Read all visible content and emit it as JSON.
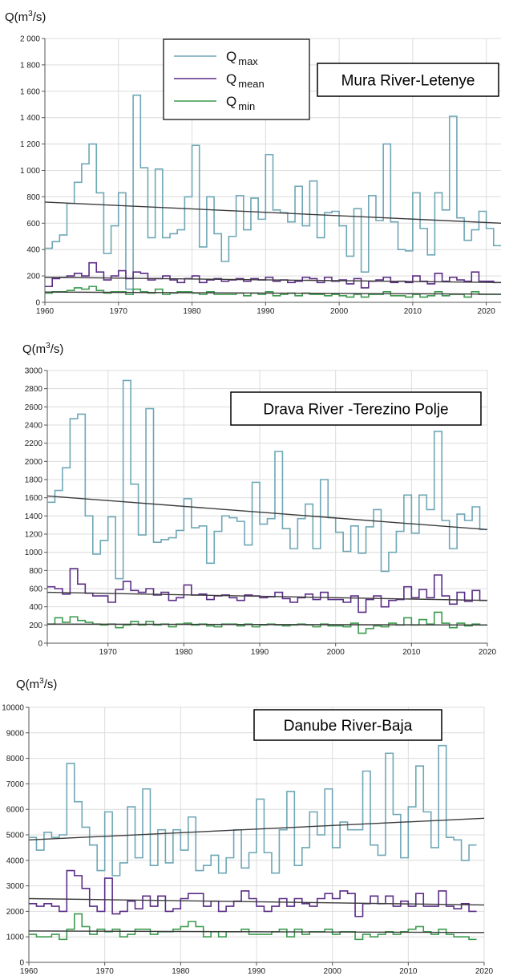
{
  "legend": {
    "items": [
      {
        "symbol": "Q",
        "sub": "max",
        "color": "#6fa7b6"
      },
      {
        "symbol": "Q",
        "sub": "mean",
        "color": "#5b2d86"
      },
      {
        "symbol": "Q",
        "sub": "min",
        "color": "#3c9a4e"
      }
    ]
  },
  "chart_data": [
    {
      "type": "line",
      "title": "Mura River-Letenye",
      "ylabel": "Q(m3/s)",
      "ylabel_parts": {
        "pre": "Q(m",
        "sup": "3",
        "post": "/s)"
      },
      "xlim": [
        1960,
        2022
      ],
      "ylim": [
        0,
        2000
      ],
      "xticks": [
        1960,
        1970,
        1980,
        1990,
        2000,
        2010,
        2020
      ],
      "yticks": [
        0,
        200,
        400,
        600,
        800,
        1000,
        1200,
        1400,
        1600,
        1800,
        2000
      ],
      "ytick_labels": [
        "0",
        "200",
        "400",
        "600",
        "800",
        "1 000",
        "1 200",
        "1 400",
        "1 600",
        "1 800",
        "2 000"
      ],
      "grid": true,
      "x_start": 1960,
      "series": [
        {
          "color": "#6fa7b6",
          "values": [
            410,
            460,
            510,
            750,
            910,
            1050,
            1200,
            830,
            370,
            580,
            830,
            100,
            1570,
            1020,
            490,
            1010,
            490,
            520,
            550,
            800,
            1190,
            420,
            800,
            520,
            310,
            500,
            810,
            550,
            790,
            630,
            1120,
            700,
            680,
            610,
            880,
            580,
            920,
            490,
            680,
            690,
            580,
            350,
            710,
            230,
            810,
            620,
            1200,
            610,
            400,
            390,
            830,
            560,
            360,
            830,
            700,
            1410,
            640,
            470,
            550,
            690,
            560,
            430,
            430
          ]
        },
        {
          "color": "#5b2d86",
          "values": [
            120,
            180,
            190,
            200,
            220,
            200,
            300,
            230,
            170,
            200,
            240,
            180,
            230,
            220,
            170,
            180,
            200,
            170,
            150,
            180,
            200,
            150,
            170,
            180,
            160,
            170,
            180,
            160,
            180,
            170,
            190,
            160,
            170,
            150,
            160,
            190,
            180,
            150,
            190,
            160,
            170,
            140,
            180,
            110,
            160,
            170,
            190,
            150,
            160,
            150,
            200,
            160,
            140,
            220,
            160,
            190,
            170,
            160,
            230,
            160,
            160,
            150,
            150
          ]
        },
        {
          "color": "#3c9a4e",
          "values": [
            70,
            80,
            80,
            90,
            110,
            100,
            120,
            90,
            70,
            80,
            80,
            60,
            100,
            80,
            70,
            100,
            60,
            70,
            80,
            80,
            70,
            60,
            80,
            60,
            60,
            60,
            70,
            50,
            70,
            60,
            80,
            50,
            60,
            70,
            50,
            70,
            60,
            60,
            50,
            60,
            50,
            40,
            60,
            40,
            60,
            60,
            80,
            50,
            50,
            40,
            60,
            40,
            50,
            80,
            50,
            60,
            60,
            40,
            80,
            60,
            60,
            60,
            60
          ]
        }
      ],
      "trends": [
        {
          "color": "#3c3c3c",
          "x": [
            1960,
            2022
          ],
          "y": [
            760,
            600
          ]
        },
        {
          "color": "#3c3c3c",
          "x": [
            1960,
            2022
          ],
          "y": [
            190,
            150
          ]
        },
        {
          "color": "#3c3c3c",
          "x": [
            1960,
            2022
          ],
          "y": [
            78,
            62
          ]
        }
      ]
    },
    {
      "type": "line",
      "title": "Drava River -Terezino Polje",
      "ylabel": "Q(m3/s)",
      "ylabel_parts": {
        "pre": "Q(m",
        "sup": "3",
        "post": "/s)"
      },
      "xlim": [
        1962,
        2020
      ],
      "ylim": [
        0,
        3000
      ],
      "xticks": [
        1970,
        1980,
        1990,
        2000,
        2010,
        2020
      ],
      "yticks": [
        0,
        200,
        400,
        600,
        800,
        1000,
        1200,
        1400,
        1600,
        1800,
        2000,
        2200,
        2400,
        2600,
        2800,
        3000
      ],
      "ytick_labels": [
        "0",
        "200",
        "400",
        "600",
        "800",
        "1000",
        "1200",
        "1400",
        "1600",
        "1800",
        "2000",
        "2200",
        "2400",
        "2600",
        "2800",
        "3000"
      ],
      "grid": true,
      "x_start": 1962,
      "series": [
        {
          "color": "#6fa7b6",
          "values": [
            1550,
            1680,
            1930,
            2470,
            2520,
            1400,
            980,
            1130,
            1390,
            710,
            2890,
            1750,
            1190,
            2580,
            1110,
            1140,
            1160,
            1240,
            1590,
            1270,
            1290,
            880,
            1230,
            1400,
            1380,
            1340,
            1080,
            1770,
            1310,
            1370,
            2110,
            1260,
            1040,
            1370,
            1530,
            1040,
            1800,
            1380,
            1220,
            1010,
            1290,
            990,
            1280,
            1470,
            790,
            1000,
            1230,
            1630,
            1210,
            1630,
            1470,
            2330,
            1350,
            1040,
            1420,
            1350,
            1500,
            1250
          ]
        },
        {
          "color": "#5b2d86",
          "values": [
            620,
            600,
            540,
            820,
            650,
            550,
            520,
            520,
            450,
            590,
            680,
            580,
            560,
            600,
            530,
            560,
            470,
            500,
            640,
            530,
            540,
            480,
            520,
            530,
            500,
            470,
            530,
            520,
            500,
            510,
            560,
            490,
            450,
            500,
            540,
            480,
            560,
            480,
            480,
            450,
            520,
            340,
            480,
            520,
            400,
            470,
            480,
            620,
            500,
            590,
            500,
            750,
            520,
            430,
            560,
            460,
            580,
            470
          ]
        },
        {
          "color": "#3c9a4e",
          "values": [
            210,
            280,
            230,
            290,
            250,
            230,
            210,
            200,
            210,
            170,
            200,
            240,
            200,
            240,
            200,
            210,
            180,
            210,
            220,
            200,
            210,
            190,
            180,
            210,
            210,
            190,
            210,
            180,
            200,
            210,
            200,
            190,
            200,
            210,
            200,
            180,
            210,
            190,
            190,
            180,
            220,
            110,
            160,
            190,
            180,
            220,
            200,
            280,
            200,
            260,
            210,
            340,
            220,
            170,
            220,
            190,
            210,
            200
          ]
        }
      ],
      "trends": [
        {
          "color": "#3c3c3c",
          "x": [
            1962,
            2020
          ],
          "y": [
            1620,
            1250
          ]
        },
        {
          "color": "#3c3c3c",
          "x": [
            1962,
            2020
          ],
          "y": [
            560,
            470
          ]
        },
        {
          "color": "#3c3c3c",
          "x": [
            1962,
            2020
          ],
          "y": [
            210,
            200
          ]
        }
      ]
    },
    {
      "type": "line",
      "title": "Danube River-Baja",
      "ylabel": "Q(m3/s)",
      "ylabel_parts": {
        "pre": "Q(m",
        "sup": "3",
        "post": "/s)"
      },
      "xlim": [
        1960,
        2020
      ],
      "ylim": [
        0,
        10000
      ],
      "xticks": [
        1960,
        1970,
        1980,
        1990,
        2000,
        2010,
        2020
      ],
      "yticks": [
        0,
        1000,
        2000,
        3000,
        4000,
        5000,
        6000,
        7000,
        8000,
        9000,
        10000
      ],
      "ytick_labels": [
        "0",
        "1000",
        "2000",
        "3000",
        "4000",
        "5000",
        "6000",
        "7000",
        "8000",
        "9000",
        "10000"
      ],
      "grid": true,
      "x_start": 1960,
      "series": [
        {
          "color": "#6fa7b6",
          "values": [
            4900,
            4400,
            5100,
            4900,
            5000,
            7800,
            6300,
            5300,
            4600,
            3600,
            5900,
            3400,
            3900,
            6100,
            4100,
            6800,
            3800,
            5200,
            3900,
            5200,
            4400,
            5700,
            3600,
            3800,
            4200,
            3500,
            4100,
            5200,
            3700,
            4300,
            6400,
            4300,
            3500,
            5200,
            6700,
            3800,
            4500,
            5900,
            5000,
            6800,
            4500,
            5500,
            5200,
            5200,
            7500,
            4600,
            4200,
            8200,
            5800,
            4100,
            6100,
            7700,
            5900,
            4500,
            8500,
            4900,
            4800,
            4000,
            4600
          ]
        },
        {
          "color": "#5b2d86",
          "values": [
            2300,
            2200,
            2300,
            2200,
            2000,
            3600,
            3400,
            2900,
            2200,
            2000,
            3300,
            1900,
            2000,
            2400,
            2100,
            2600,
            2200,
            2600,
            2000,
            2100,
            2500,
            2700,
            2700,
            2200,
            2400,
            2000,
            2200,
            2400,
            2800,
            2500,
            2200,
            2000,
            2200,
            2500,
            2200,
            2500,
            2300,
            2200,
            2500,
            2700,
            2500,
            2800,
            2700,
            1800,
            2300,
            2600,
            2300,
            2600,
            2200,
            2400,
            2200,
            2700,
            2200,
            2200,
            2800,
            2200,
            2100,
            2300,
            2000
          ]
        },
        {
          "color": "#3c9a4e",
          "values": [
            1100,
            1000,
            1000,
            1100,
            900,
            1300,
            1900,
            1400,
            1100,
            1300,
            1200,
            1300,
            1000,
            1100,
            1300,
            1300,
            1100,
            1200,
            1200,
            1300,
            1400,
            1600,
            1400,
            1000,
            1200,
            1000,
            1200,
            1200,
            1300,
            1100,
            1100,
            1100,
            1200,
            1300,
            1000,
            1300,
            1100,
            1200,
            1200,
            1300,
            1100,
            1200,
            1200,
            900,
            1100,
            1000,
            1100,
            1200,
            1100,
            1200,
            1300,
            1400,
            1200,
            1100,
            1300,
            1100,
            1000,
            1000,
            900
          ]
        }
      ],
      "trends": [
        {
          "color": "#3c3c3c",
          "x": [
            1960,
            2020
          ],
          "y": [
            4800,
            5650
          ]
        },
        {
          "color": "#3c3c3c",
          "x": [
            1960,
            2020
          ],
          "y": [
            2500,
            2250
          ]
        },
        {
          "color": "#3c3c3c",
          "x": [
            1960,
            2020
          ],
          "y": [
            1230,
            1170
          ]
        }
      ]
    }
  ]
}
